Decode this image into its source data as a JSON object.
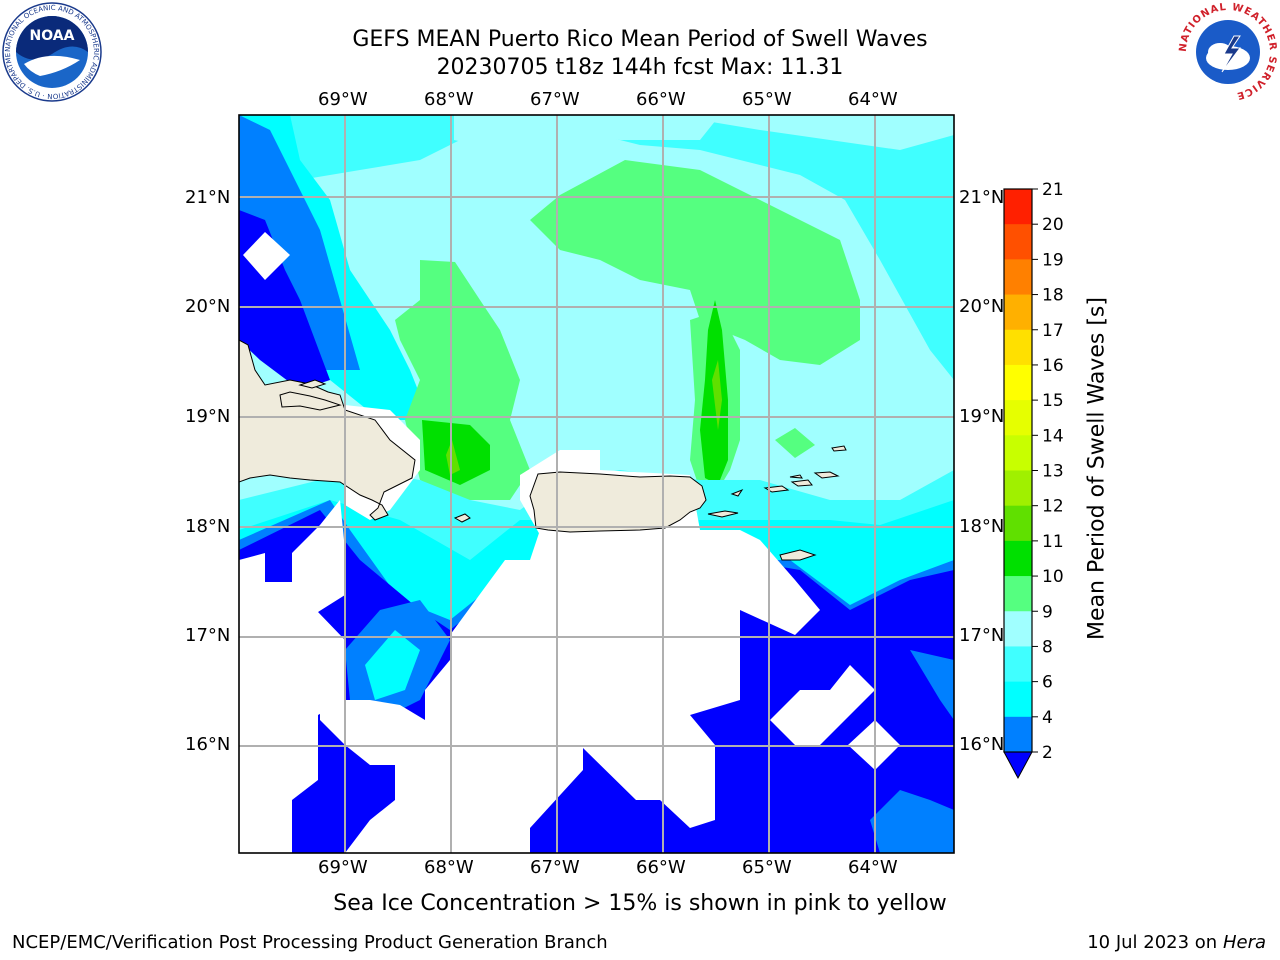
{
  "title": {
    "line1": "GEFS MEAN Puerto Rico Mean Period of Swell Waves",
    "line2": "20230705 t18z 144h fcst   Max: 11.31"
  },
  "map": {
    "lon_labels": [
      "69°W",
      "68°W",
      "67°W",
      "66°W",
      "65°W",
      "64°W"
    ],
    "lat_labels": [
      "21°N",
      "20°N",
      "19°N",
      "18°N",
      "17°N",
      "16°N"
    ]
  },
  "colorbar": {
    "label": "Mean Period of Swell Waves [s]",
    "ticks": [
      "2",
      "4",
      "6",
      "8",
      "9",
      "10",
      "11",
      "12",
      "13",
      "14",
      "15",
      "16",
      "17",
      "18",
      "19",
      "20",
      "21"
    ],
    "colors": [
      "#0000ff",
      "#0080ff",
      "#00ffff",
      "#40ffff",
      "#a0ffff",
      "#55ff80",
      "#00e000",
      "#60e000",
      "#a0f000",
      "#c8ff00",
      "#e6ff00",
      "#ffff00",
      "#ffe000",
      "#ffb000",
      "#ff8000",
      "#ff5000",
      "#ff2000",
      "#ff0000"
    ]
  },
  "caption": "Sea Ice Concentration > 15% is shown in pink to yellow",
  "footer": {
    "left": "NCEP/EMC/Verification Post Processing Product Generation Branch",
    "right_prefix": "10 Jul 2023 on ",
    "right_host": "Hera"
  },
  "logos": {
    "noaa_text": "NOAA",
    "noaa_ring": "NATIONAL OCEANIC AND ATMOSPHERIC ADMINISTRATION · U.S. DEPARTMENT OF COMMERCE",
    "nws_ring": "NATIONAL WEATHER SERVICE"
  }
}
